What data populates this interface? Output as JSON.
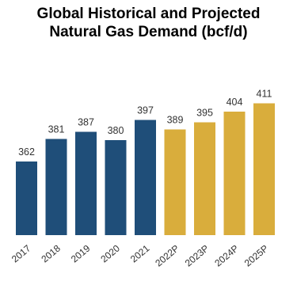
{
  "chart_data": {
    "type": "bar",
    "title_line1": "Global Historical and Projected",
    "title_line2": "Natural Gas Demand (bcf/d)",
    "categories": [
      "2017",
      "2018",
      "2019",
      "2020",
      "2021",
      "2022P",
      "2023P",
      "2024P",
      "2025P"
    ],
    "values": [
      362,
      381,
      387,
      380,
      397,
      389,
      395,
      404,
      411
    ],
    "data_labels": [
      "362",
      "381",
      "387",
      "380",
      "397",
      "389",
      "395",
      "404",
      "411"
    ],
    "ylim": [
      0,
      420
    ],
    "grid": false,
    "legend": "none",
    "colors": {
      "historical": "#1f4e79",
      "projected": "#d9ad3c"
    },
    "historical_count": 5
  }
}
